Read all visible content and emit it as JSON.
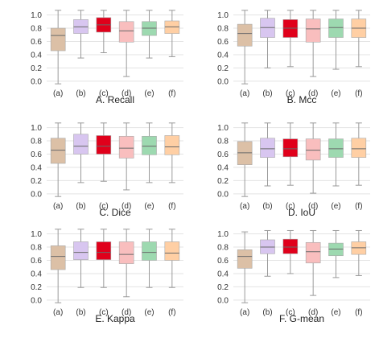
{
  "figure": {
    "colors": {
      "(a)": "#dcc0a6",
      "(b)": "#d8c6f0",
      "(c)": "#e0001b",
      "(d)": "#f9bebe",
      "(e)": "#9dd9b0",
      "(f)": "#ffcfa4"
    },
    "grid_color": "#e3e3e3",
    "whisker_color": "#9a9a9a"
  },
  "chart_data": [
    {
      "type": "box",
      "title": "A. Recall",
      "categories": [
        "(a)",
        "(b)",
        "(c)",
        "(d)",
        "(e)",
        "(f)"
      ],
      "yticks": [
        0.0,
        0.2,
        0.4,
        0.6,
        0.8,
        1.0
      ],
      "ytick_labels": [
        "0.0",
        "0.2",
        "0.4",
        "0.6",
        "0.8",
        "1.0"
      ],
      "ylim": [
        -0.05,
        1.08
      ],
      "grid": true,
      "boxes": [
        {
          "min": -0.04,
          "q1": 0.46,
          "median": 0.69,
          "q3": 0.8,
          "max": 1.07
        },
        {
          "min": 0.35,
          "q1": 0.72,
          "median": 0.82,
          "q3": 0.93,
          "max": 1.07
        },
        {
          "min": 0.43,
          "q1": 0.74,
          "median": 0.85,
          "q3": 0.96,
          "max": 1.07
        },
        {
          "min": 0.07,
          "q1": 0.59,
          "median": 0.76,
          "q3": 0.9,
          "max": 1.07
        },
        {
          "min": 0.35,
          "q1": 0.69,
          "median": 0.8,
          "q3": 0.9,
          "max": 1.07
        },
        {
          "min": 0.37,
          "q1": 0.72,
          "median": 0.82,
          "q3": 0.91,
          "max": 1.07
        }
      ]
    },
    {
      "type": "box",
      "title": "B. Mcc",
      "categories": [
        "(a)",
        "(b)",
        "(c)",
        "(d)",
        "(e)",
        "(f)"
      ],
      "yticks": [
        0.0,
        0.2,
        0.4,
        0.6,
        0.8,
        1.0
      ],
      "ytick_labels": [
        "0.0",
        "0.2",
        "0.4",
        "0.6",
        "0.8",
        "1.0"
      ],
      "ylim": [
        -0.05,
        1.08
      ],
      "grid": true,
      "boxes": [
        {
          "min": -0.04,
          "q1": 0.53,
          "median": 0.72,
          "q3": 0.86,
          "max": 1.07
        },
        {
          "min": 0.2,
          "q1": 0.66,
          "median": 0.81,
          "q3": 0.95,
          "max": 1.07
        },
        {
          "min": 0.22,
          "q1": 0.66,
          "median": 0.8,
          "q3": 0.93,
          "max": 1.07
        },
        {
          "min": 0.07,
          "q1": 0.59,
          "median": 0.79,
          "q3": 0.94,
          "max": 1.07
        },
        {
          "min": 0.18,
          "q1": 0.66,
          "median": 0.81,
          "q3": 0.94,
          "max": 1.07
        },
        {
          "min": 0.22,
          "q1": 0.66,
          "median": 0.8,
          "q3": 0.94,
          "max": 1.07
        }
      ]
    },
    {
      "type": "box",
      "title": "C. Dice",
      "categories": [
        "(a)",
        "(b)",
        "(c)",
        "(d)",
        "(e)",
        "(f)"
      ],
      "yticks": [
        0.0,
        0.2,
        0.4,
        0.6,
        0.8,
        1.0
      ],
      "ytick_labels": [
        "0.0",
        "0.2",
        "0.4",
        "0.6",
        "0.8",
        "1.0"
      ],
      "ylim": [
        -0.05,
        1.08
      ],
      "grid": true,
      "boxes": [
        {
          "min": -0.04,
          "q1": 0.46,
          "median": 0.66,
          "q3": 0.84,
          "max": 1.07
        },
        {
          "min": 0.17,
          "q1": 0.6,
          "median": 0.72,
          "q3": 0.9,
          "max": 1.07
        },
        {
          "min": 0.19,
          "q1": 0.6,
          "median": 0.72,
          "q3": 0.88,
          "max": 1.07
        },
        {
          "min": 0.06,
          "q1": 0.54,
          "median": 0.69,
          "q3": 0.87,
          "max": 1.07
        },
        {
          "min": 0.17,
          "q1": 0.59,
          "median": 0.72,
          "q3": 0.87,
          "max": 1.07
        },
        {
          "min": 0.17,
          "q1": 0.59,
          "median": 0.71,
          "q3": 0.88,
          "max": 1.07
        }
      ]
    },
    {
      "type": "box",
      "title": "D. IoU",
      "categories": [
        "(a)",
        "(b)",
        "(c)",
        "(d)",
        "(e)",
        "(f)"
      ],
      "yticks": [
        0.0,
        0.2,
        0.4,
        0.6,
        0.8,
        1.0
      ],
      "ytick_labels": [
        "0.0",
        "0.2",
        "0.4",
        "0.6",
        "0.8",
        "1.0"
      ],
      "ylim": [
        -0.05,
        1.08
      ],
      "grid": true,
      "boxes": [
        {
          "min": -0.04,
          "q1": 0.44,
          "median": 0.62,
          "q3": 0.79,
          "max": 1.07
        },
        {
          "min": 0.12,
          "q1": 0.55,
          "median": 0.68,
          "q3": 0.84,
          "max": 1.07
        },
        {
          "min": 0.13,
          "q1": 0.56,
          "median": 0.68,
          "q3": 0.83,
          "max": 1.07
        },
        {
          "min": 0.01,
          "q1": 0.51,
          "median": 0.66,
          "q3": 0.83,
          "max": 1.07
        },
        {
          "min": 0.12,
          "q1": 0.55,
          "median": 0.68,
          "q3": 0.83,
          "max": 1.07
        },
        {
          "min": 0.13,
          "q1": 0.55,
          "median": 0.68,
          "q3": 0.84,
          "max": 1.07
        }
      ]
    },
    {
      "type": "box",
      "title": "E. Kappa",
      "categories": [
        "(a)",
        "(b)",
        "(c)",
        "(d)",
        "(e)",
        "(f)"
      ],
      "yticks": [
        0.0,
        0.2,
        0.4,
        0.6,
        0.8,
        1.0
      ],
      "ytick_labels": [
        "0.0",
        "0.2",
        "0.4",
        "0.6",
        "0.8",
        "1.0"
      ],
      "ylim": [
        -0.05,
        1.08
      ],
      "grid": true,
      "boxes": [
        {
          "min": -0.04,
          "q1": 0.46,
          "median": 0.66,
          "q3": 0.82,
          "max": 1.07
        },
        {
          "min": 0.19,
          "q1": 0.61,
          "median": 0.72,
          "q3": 0.88,
          "max": 1.07
        },
        {
          "min": 0.19,
          "q1": 0.61,
          "median": 0.72,
          "q3": 0.88,
          "max": 1.07
        },
        {
          "min": 0.05,
          "q1": 0.55,
          "median": 0.69,
          "q3": 0.88,
          "max": 1.07
        },
        {
          "min": 0.19,
          "q1": 0.6,
          "median": 0.72,
          "q3": 0.88,
          "max": 1.07
        },
        {
          "min": 0.19,
          "q1": 0.6,
          "median": 0.71,
          "q3": 0.88,
          "max": 1.07
        }
      ]
    },
    {
      "type": "box",
      "title": "F. G-mean",
      "categories": [
        "(a)",
        "(b)",
        "(c)",
        "(d)",
        "(e)",
        "(f)"
      ],
      "yticks": [
        0.0,
        0.2,
        0.4,
        0.6,
        0.8,
        1.0
      ],
      "ytick_labels": [
        "0.0",
        "0.2",
        "0.4",
        "0.6",
        "0.8",
        "1.0"
      ],
      "ylim": [
        -0.05,
        1.08
      ],
      "grid": true,
      "boxes": [
        {
          "min": -0.04,
          "q1": 0.48,
          "median": 0.66,
          "q3": 0.76,
          "max": 1.03
        },
        {
          "min": 0.36,
          "q1": 0.7,
          "median": 0.8,
          "q3": 0.91,
          "max": 1.05
        },
        {
          "min": 0.4,
          "q1": 0.7,
          "median": 0.8,
          "q3": 0.92,
          "max": 1.05
        },
        {
          "min": 0.07,
          "q1": 0.56,
          "median": 0.73,
          "q3": 0.87,
          "max": 1.05
        },
        {
          "min": 0.34,
          "q1": 0.67,
          "median": 0.77,
          "q3": 0.86,
          "max": 1.05
        },
        {
          "min": 0.37,
          "q1": 0.69,
          "median": 0.79,
          "q3": 0.88,
          "max": 1.05
        }
      ]
    }
  ]
}
